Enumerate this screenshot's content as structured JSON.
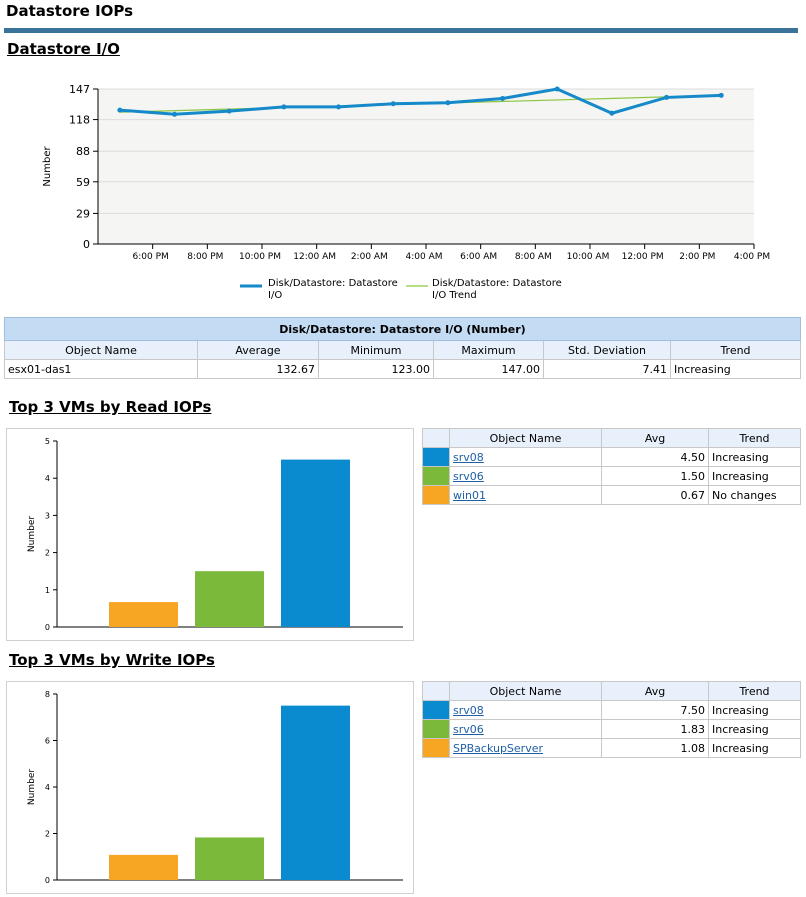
{
  "page_title": "Datastore IOPs",
  "section_io": {
    "title": "Datastore I/O",
    "table": {
      "caption": "Disk/Datastore: Datastore I/O (Number)",
      "headers": [
        "Object Name",
        "Average",
        "Minimum",
        "Maximum",
        "Std. Deviation",
        "Trend"
      ],
      "rows": [
        [
          "esx01-das1",
          "132.67",
          "123.00",
          "147.00",
          "7.41",
          "Increasing"
        ]
      ]
    }
  },
  "section_read": {
    "title": "Top 3 VMs by Read IOPs",
    "table": {
      "headers": [
        "",
        "Object Name",
        "Avg",
        "Trend"
      ],
      "rows": [
        {
          "name": "srv08",
          "avg": "4.50",
          "trend": "Increasing",
          "color": "#0a8bd0"
        },
        {
          "name": "srv06",
          "avg": "1.50",
          "trend": "Increasing",
          "color": "#7ab939"
        },
        {
          "name": "win01",
          "avg": "0.67",
          "trend": "No changes",
          "color": "#f6a623"
        }
      ]
    }
  },
  "section_write": {
    "title": "Top 3 VMs by Write IOPs",
    "table": {
      "headers": [
        "",
        "Object Name",
        "Avg",
        "Trend"
      ],
      "rows": [
        {
          "name": "srv08",
          "avg": "7.50",
          "trend": "Increasing",
          "color": "#0a8bd0"
        },
        {
          "name": "srv06",
          "avg": "1.83",
          "trend": "Increasing",
          "color": "#7ab939"
        },
        {
          "name": "SPBackupServer",
          "avg": "1.08",
          "trend": "Increasing",
          "color": "#f6a623"
        }
      ]
    }
  },
  "chart_data": [
    {
      "type": "line",
      "ylabel": "Number",
      "xlabel": "",
      "ylim": [
        0,
        147
      ],
      "yticks": [
        0,
        29,
        59,
        88,
        118,
        147
      ],
      "x_ticks": [
        "6:00 PM",
        "8:00 PM",
        "10:00 PM",
        "12:00 AM",
        "2:00 AM",
        "4:00 AM",
        "6:00 AM",
        "8:00 AM",
        "10:00 AM",
        "12:00 PM",
        "2:00 PM",
        "4:00 PM"
      ],
      "x_range_hours": [
        16,
        40
      ],
      "grid": true,
      "legend": "bottom",
      "series": [
        {
          "name": "Disk/Datastore: Datastore I/O",
          "color": "#1589c9",
          "points": [
            {
              "t": 16.8,
              "y": 127
            },
            {
              "t": 18.8,
              "y": 123
            },
            {
              "t": 20.8,
              "y": 126
            },
            {
              "t": 22.8,
              "y": 130
            },
            {
              "t": 24.8,
              "y": 130
            },
            {
              "t": 26.8,
              "y": 133
            },
            {
              "t": 28.8,
              "y": 134
            },
            {
              "t": 30.8,
              "y": 138
            },
            {
              "t": 32.8,
              "y": 147
            },
            {
              "t": 34.8,
              "y": 124
            },
            {
              "t": 36.8,
              "y": 139
            },
            {
              "t": 38.8,
              "y": 141
            }
          ]
        },
        {
          "name": "Disk/Datastore: Datastore I/O Trend",
          "color": "#8cc63f",
          "points": [
            {
              "t": 16.8,
              "y": 125
            },
            {
              "t": 38.8,
              "y": 141
            }
          ]
        }
      ]
    },
    {
      "type": "bar",
      "ylabel": "Number",
      "ylim": [
        0,
        5
      ],
      "yticks": [
        0,
        1,
        2,
        3,
        4,
        5
      ],
      "categories": [
        "win01",
        "srv06",
        "srv08"
      ],
      "values": [
        0.67,
        1.5,
        4.5
      ],
      "colors": [
        "#f6a623",
        "#7ab939",
        "#0a8bd0"
      ]
    },
    {
      "type": "bar",
      "ylabel": "Number",
      "ylim": [
        0,
        8
      ],
      "yticks": [
        0,
        2,
        4,
        6,
        8
      ],
      "categories": [
        "SPBackupServer",
        "srv06",
        "srv08"
      ],
      "values": [
        1.08,
        1.83,
        7.5
      ],
      "colors": [
        "#f6a623",
        "#7ab939",
        "#0a8bd0"
      ]
    }
  ]
}
